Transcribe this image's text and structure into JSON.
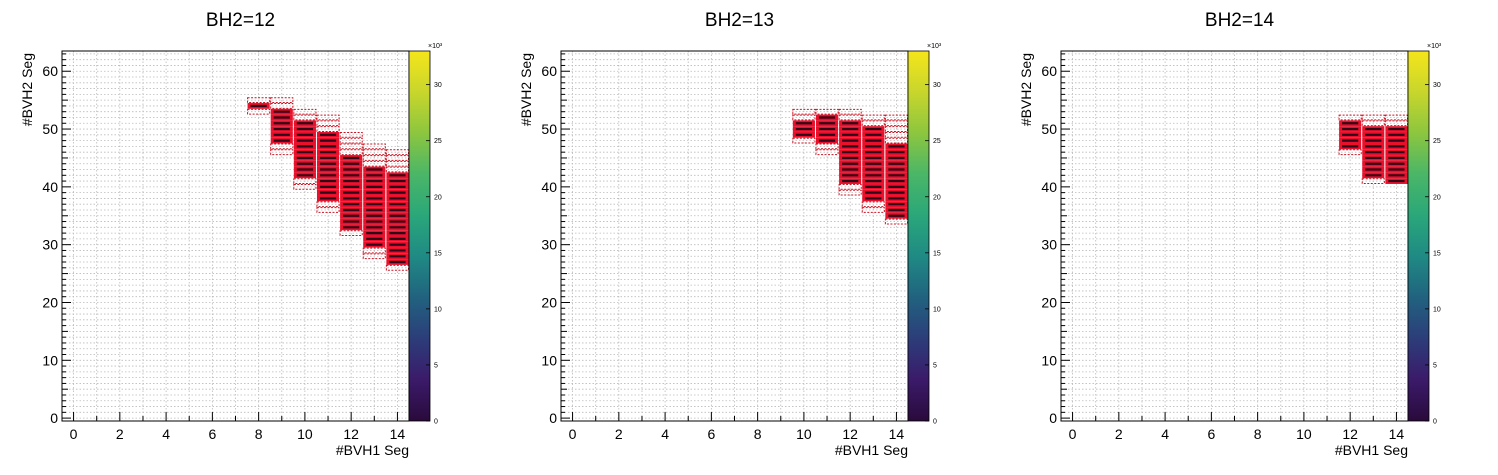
{
  "chart_data": [
    {
      "type": "heatmap",
      "title": "BH2=12",
      "xlabel": "#BVH1 Seg",
      "ylabel": "#BVH2 Seg",
      "xlim": [
        -0.5,
        14.5
      ],
      "ylim": [
        -0.5,
        63.5
      ],
      "x_ticks": [
        0,
        2,
        4,
        6,
        8,
        10,
        12,
        14
      ],
      "y_ticks": [
        0,
        10,
        20,
        30,
        40,
        50,
        60
      ],
      "z_ticks": [
        0,
        5,
        10,
        15,
        20,
        25,
        30
      ],
      "z_exponent_label": "×10³",
      "grid": true,
      "box_columns": [
        {
          "x": 8,
          "ylow_range": [
            53,
            55
          ],
          "yhigh_range": [
            54,
            54
          ]
        },
        {
          "x": 9,
          "ylow_range": [
            46,
            55
          ],
          "yhigh_range": [
            48,
            53
          ]
        },
        {
          "x": 10,
          "ylow_range": [
            40,
            53
          ],
          "yhigh_range": [
            42,
            51
          ]
        },
        {
          "x": 11,
          "ylow_range": [
            36,
            52
          ],
          "yhigh_range": [
            38,
            49
          ]
        },
        {
          "x": 12,
          "ylow_range": [
            32,
            49
          ],
          "yhigh_range": [
            33,
            45
          ]
        },
        {
          "x": 13,
          "ylow_range": [
            28,
            47
          ],
          "yhigh_range": [
            30,
            43
          ]
        },
        {
          "x": 14,
          "ylow_range": [
            26,
            46
          ],
          "yhigh_range": [
            27,
            42
          ]
        }
      ]
    },
    {
      "type": "heatmap",
      "title": "BH2=13",
      "xlabel": "#BVH1 Seg",
      "ylabel": "#BVH2 Seg",
      "xlim": [
        -0.5,
        14.5
      ],
      "ylim": [
        -0.5,
        63.5
      ],
      "x_ticks": [
        0,
        2,
        4,
        6,
        8,
        10,
        12,
        14
      ],
      "y_ticks": [
        0,
        10,
        20,
        30,
        40,
        50,
        60
      ],
      "z_ticks": [
        0,
        5,
        10,
        15,
        20,
        25,
        30
      ],
      "z_exponent_label": "×10³",
      "grid": true,
      "box_columns": [
        {
          "x": 10,
          "ylow_range": [
            48,
            53
          ],
          "yhigh_range": [
            49,
            51
          ]
        },
        {
          "x": 11,
          "ylow_range": [
            46,
            53
          ],
          "yhigh_range": [
            48,
            52
          ]
        },
        {
          "x": 12,
          "ylow_range": [
            39,
            53
          ],
          "yhigh_range": [
            41,
            51
          ]
        },
        {
          "x": 13,
          "ylow_range": [
            36,
            52
          ],
          "yhigh_range": [
            38,
            50
          ]
        },
        {
          "x": 14,
          "ylow_range": [
            34,
            52
          ],
          "yhigh_range": [
            35,
            47
          ]
        }
      ]
    },
    {
      "type": "heatmap",
      "title": "BH2=14",
      "xlabel": "#BVH1 Seg",
      "ylabel": "#BVH2 Seg",
      "xlim": [
        -0.5,
        14.5
      ],
      "ylim": [
        -0.5,
        63.5
      ],
      "x_ticks": [
        0,
        2,
        4,
        6,
        8,
        10,
        12,
        14
      ],
      "y_ticks": [
        0,
        10,
        20,
        30,
        40,
        50,
        60
      ],
      "z_ticks": [
        0,
        5,
        10,
        15,
        20,
        25,
        30
      ],
      "z_exponent_label": "×10³",
      "grid": true,
      "box_columns": [
        {
          "x": 12,
          "ylow_range": [
            46,
            52
          ],
          "yhigh_range": [
            47,
            51
          ]
        },
        {
          "x": 13,
          "ylow_range": [
            41,
            52
          ],
          "yhigh_range": [
            42,
            50
          ]
        },
        {
          "x": 14,
          "ylow_range": [
            41,
            52
          ],
          "yhigh_range": [
            41,
            50
          ]
        }
      ]
    }
  ],
  "colors": {
    "box_fill": "#e8102a",
    "box_dash": "#d01020",
    "box_core": "#300018",
    "grid": "#bbbbbb",
    "palette": [
      "#2a0a3b",
      "#3b1a6a",
      "#2c3d7a",
      "#21627f",
      "#1f8a84",
      "#2aa77a",
      "#4ab667",
      "#8cc63f",
      "#c8d62c",
      "#f5e51b"
    ]
  }
}
